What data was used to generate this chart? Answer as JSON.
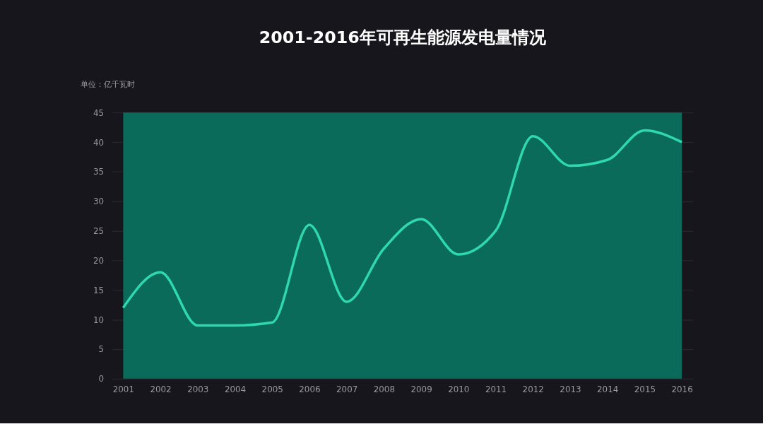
{
  "chart_data": {
    "type": "line",
    "title": "2001-2016年可再生能源发电量情况",
    "ylabel": "单位：亿千瓦时",
    "categories": [
      "2001",
      "2002",
      "2003",
      "2004",
      "2005",
      "2006",
      "2007",
      "2008",
      "2009",
      "2010",
      "2011",
      "2012",
      "2013",
      "2014",
      "2015",
      "2016"
    ],
    "series": [
      {
        "color": "#2ed8b0",
        "values": [
          12,
          18,
          9,
          9,
          9.5,
          26,
          13,
          22,
          27,
          21,
          25,
          41,
          36,
          37,
          42,
          40
        ]
      }
    ],
    "ylim": [
      0,
      45
    ],
    "yticks": [
      0,
      5,
      10,
      15,
      20,
      25,
      30,
      35,
      40,
      45
    ],
    "grid": "y",
    "marker": "none",
    "line_style": "solid",
    "bands": [
      {
        "axis": "x",
        "from": "2001",
        "to": "2016",
        "color": "#0b6b5a"
      }
    ]
  }
}
